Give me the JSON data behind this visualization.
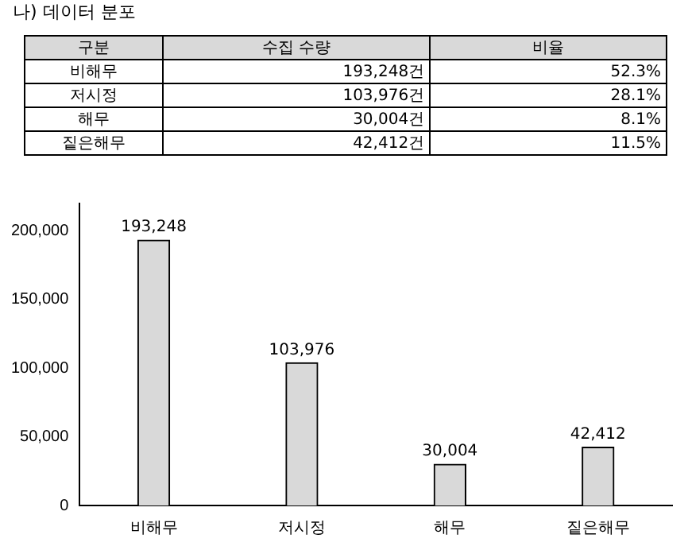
{
  "chart_data": {
    "type": "bar",
    "title": "나) 데이터 분포",
    "categories": [
      "비해무",
      "저시정",
      "해무",
      "짙은해무"
    ],
    "values": [
      193248,
      103976,
      30004,
      42412
    ],
    "color": "#d9d9d9",
    "ylim": [
      0,
      220000
    ],
    "yticks": [
      0,
      {
        "value": 50000,
        "label": "50,000"
      },
      {
        "value": 100000,
        "label": "100,000"
      },
      {
        "value": 150000,
        "label": "150,000"
      },
      {
        "value": 200000,
        "label": "200,000"
      }
    ],
    "grid": false,
    "legend": false,
    "value_labels": [
      "193,248",
      "103,976",
      "30,004",
      "42,412"
    ],
    "annotations": [
      "구분",
      "수집 수량",
      "비율",
      "비해무",
      "193,248건",
      "52.3%",
      "저시정",
      "103,976건",
      "28.1%",
      "해무",
      "30,004건",
      "8.1%",
      "짙은해무",
      "42,412건",
      "11.5%"
    ]
  }
}
